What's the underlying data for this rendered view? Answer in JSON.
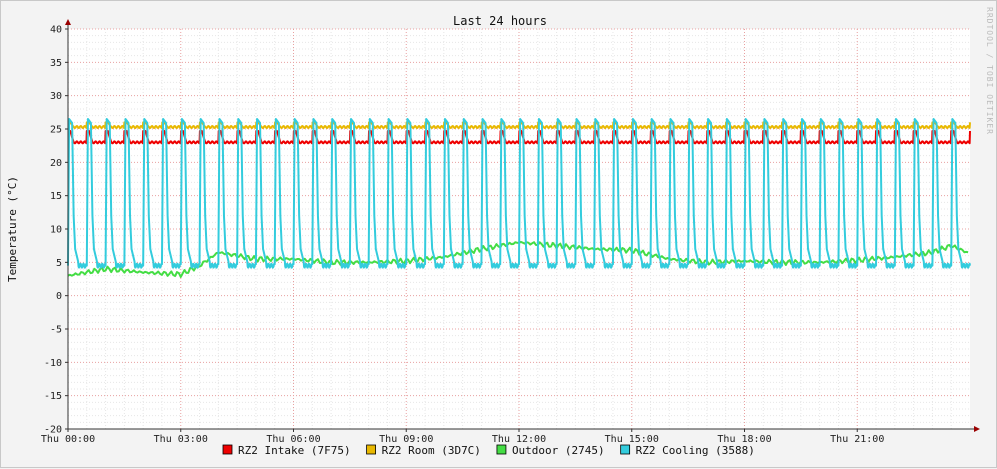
{
  "chart_data": {
    "type": "line",
    "title": "Last 24 hours",
    "ylabel": "Temperature (°C)",
    "watermark": "RRDTOOL / TOBI OETIKER",
    "ylim": [
      -20,
      40
    ],
    "yticks": [
      "40",
      "35",
      "30",
      "25",
      "20",
      "15",
      "10",
      "5",
      "0",
      "-5",
      "-10",
      "-15",
      "-20"
    ],
    "xlim_hours": [
      0,
      24
    ],
    "xticks": [
      {
        "label": "Thu 00:00",
        "hour": 0
      },
      {
        "label": "Thu 03:00",
        "hour": 3
      },
      {
        "label": "Thu 06:00",
        "hour": 6
      },
      {
        "label": "Thu 09:00",
        "hour": 9
      },
      {
        "label": "Thu 12:00",
        "hour": 12
      },
      {
        "label": "Thu 15:00",
        "hour": 15
      },
      {
        "label": "Thu 18:00",
        "hour": 18
      },
      {
        "label": "Thu 21:00",
        "hour": 21
      }
    ],
    "grid": true,
    "legend_position": "bottom",
    "series": [
      {
        "name": "RZ2 Intake (7F75)",
        "color": "#ee0000",
        "cycle_minutes": 30,
        "low": 23.0,
        "high": 24.7
      },
      {
        "name": "RZ2 Room (3D7C)",
        "color": "#e8b800",
        "cycle_minutes": 30,
        "low": 25.3,
        "high": 26.0
      },
      {
        "name": "Outdoor (2745)",
        "color": "#44dd44",
        "hours": [
          0,
          1,
          2,
          3,
          3.5,
          4,
          5,
          6,
          7,
          8,
          9,
          10,
          11,
          12,
          13,
          14,
          15,
          16,
          17,
          18,
          19,
          20,
          21,
          22,
          23,
          23.5,
          24
        ],
        "values": [
          3.0,
          4.0,
          3.5,
          3.2,
          4.5,
          6.5,
          5.5,
          5.5,
          5.0,
          5.0,
          5.2,
          5.8,
          7.0,
          8.0,
          7.5,
          7.0,
          6.8,
          5.5,
          5.0,
          5.2,
          5.0,
          5.0,
          5.3,
          5.8,
          6.5,
          7.5,
          6.3
        ]
      },
      {
        "name": "RZ2 Cooling (3588)",
        "color": "#33ccdd",
        "cycle_minutes": 30,
        "low": 4.5,
        "high": 26.5
      }
    ]
  }
}
